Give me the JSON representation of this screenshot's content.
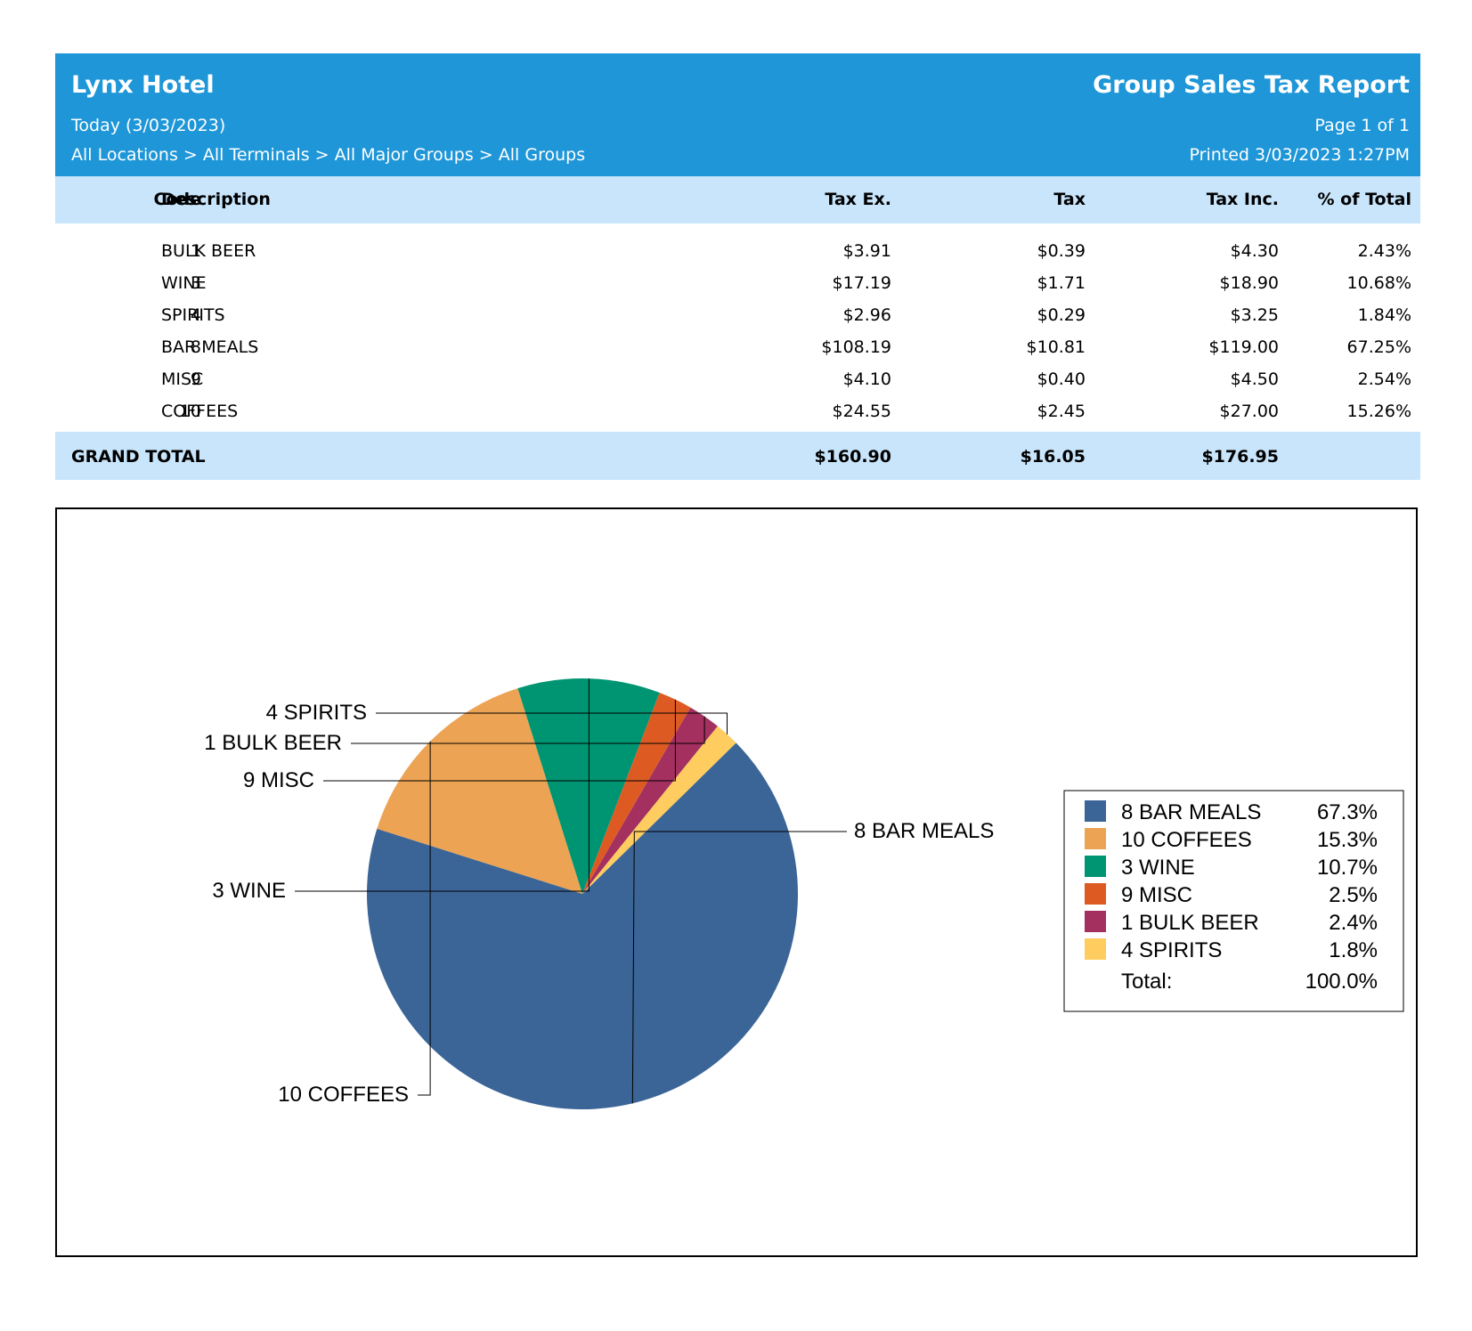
{
  "header": {
    "hotel_name": "Lynx Hotel",
    "date_range": "Today (3/03/2023)",
    "filter_path": "All Locations > All Terminals > All Major Groups > All Groups",
    "report_title": "Group Sales Tax Report",
    "page_info": "Page 1 of 1",
    "printed": "Printed 3/03/2023  1:27PM"
  },
  "table": {
    "columns": {
      "code": "Code",
      "description": "Description",
      "tax_ex": "Tax Ex.",
      "tax": "Tax",
      "tax_inc": "Tax Inc.",
      "pct": "% of Total"
    },
    "rows": [
      {
        "code": "1",
        "description": "BULK BEER",
        "tax_ex": "$3.91",
        "tax": "$0.39",
        "tax_inc": "$4.30",
        "pct": "2.43%"
      },
      {
        "code": "3",
        "description": "WINE",
        "tax_ex": "$17.19",
        "tax": "$1.71",
        "tax_inc": "$18.90",
        "pct": "10.68%"
      },
      {
        "code": "4",
        "description": "SPIRITS",
        "tax_ex": "$2.96",
        "tax": "$0.29",
        "tax_inc": "$3.25",
        "pct": "1.84%"
      },
      {
        "code": "8",
        "description": "BAR MEALS",
        "tax_ex": "$108.19",
        "tax": "$10.81",
        "tax_inc": "$119.00",
        "pct": "67.25%"
      },
      {
        "code": "9",
        "description": "MISC",
        "tax_ex": "$4.10",
        "tax": "$0.40",
        "tax_inc": "$4.50",
        "pct": "2.54%"
      },
      {
        "code": "10",
        "description": "COFFEES",
        "tax_ex": "$24.55",
        "tax": "$2.45",
        "tax_inc": "$27.00",
        "pct": "15.26%"
      }
    ],
    "grand_total": {
      "label": "GRAND TOTAL",
      "tax_ex": "$160.90",
      "tax": "$16.05",
      "tax_inc": "$176.95"
    }
  },
  "chart_data": {
    "type": "pie",
    "slices": [
      {
        "label": "8 BAR MEALS",
        "value": 67.25,
        "pct_label": "67.3%",
        "color": "#3b6597"
      },
      {
        "label": "10 COFFEES",
        "value": 15.26,
        "pct_label": "15.3%",
        "color": "#eca354"
      },
      {
        "label": "3 WINE",
        "value": 10.68,
        "pct_label": "10.7%",
        "color": "#009572"
      },
      {
        "label": "9 MISC",
        "value": 2.54,
        "pct_label": "2.5%",
        "color": "#dd5b23"
      },
      {
        "label": "1 BULK BEER",
        "value": 2.43,
        "pct_label": "2.4%",
        "color": "#a3305f"
      },
      {
        "label": "4 SPIRITS",
        "value": 1.84,
        "pct_label": "1.8%",
        "color": "#fecc5f"
      }
    ],
    "legend_total_label": "Total:",
    "legend_total_value": "100.0%",
    "legend_position": "right"
  }
}
